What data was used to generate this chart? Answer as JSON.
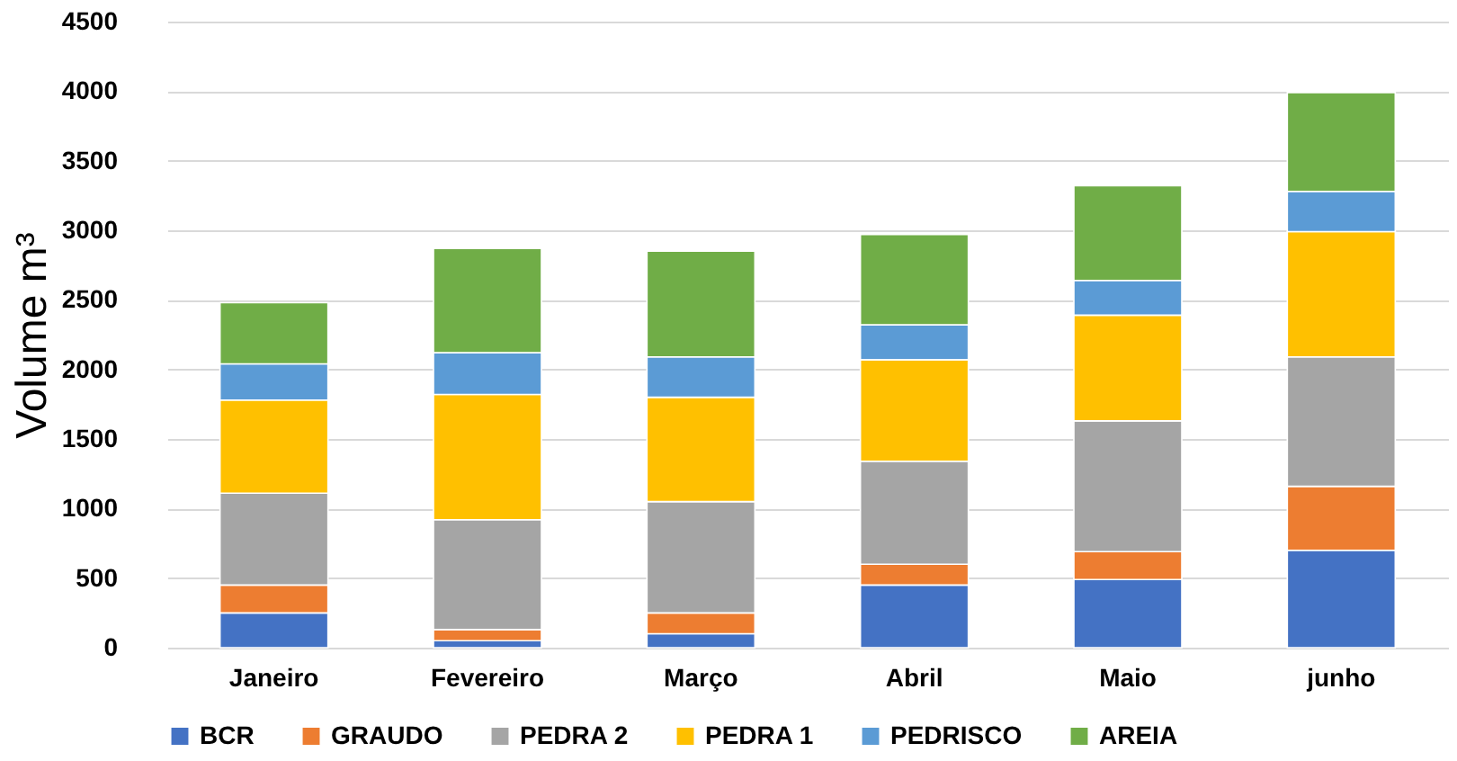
{
  "chart_data": {
    "type": "bar",
    "stacked": true,
    "ylabel": "Volume m³",
    "categories": [
      "Janeiro",
      "Fevereiro",
      "Março",
      "Abril",
      "Maio",
      "junho"
    ],
    "series": [
      {
        "name": "BCR",
        "color": "#4472c4",
        "values": [
          250,
          50,
          100,
          450,
          490,
          700
        ]
      },
      {
        "name": "GRAUDO",
        "color": "#ed7d31",
        "values": [
          200,
          80,
          150,
          150,
          200,
          460
        ]
      },
      {
        "name": "PEDRA 2",
        "color": "#a5a5a5",
        "values": [
          660,
          790,
          800,
          740,
          940,
          930
        ]
      },
      {
        "name": "PEDRA 1",
        "color": "#ffc000",
        "values": [
          670,
          900,
          750,
          730,
          760,
          900
        ]
      },
      {
        "name": "PEDRISCO",
        "color": "#5b9bd5",
        "values": [
          260,
          300,
          290,
          250,
          250,
          290
        ]
      },
      {
        "name": "AREIA",
        "color": "#70ad47",
        "values": [
          440,
          750,
          760,
          650,
          680,
          710
        ]
      }
    ],
    "ylim": [
      0,
      4500
    ],
    "yticks": [
      0,
      500,
      1000,
      1500,
      2000,
      2500,
      3000,
      3500,
      4000,
      4500
    ],
    "grid": "y",
    "legend": "bottom"
  }
}
